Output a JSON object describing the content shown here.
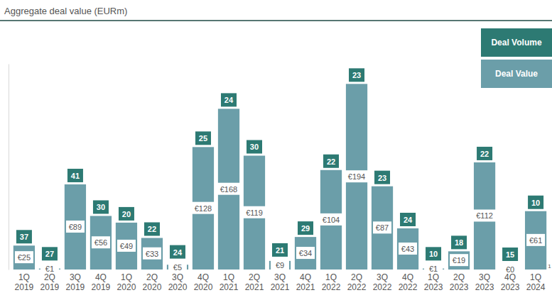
{
  "chart_data": {
    "type": "bar",
    "title": "Aggregate deal value (EURm)",
    "categories": [
      "1Q 2019",
      "2Q 2019",
      "3Q 2019",
      "4Q 2019",
      "1Q 2020",
      "2Q 2020",
      "3Q 2020",
      "4Q 2020",
      "1Q 2021",
      "2Q 2021",
      "3Q 2021",
      "4Q 2021",
      "1Q 2022",
      "2Q 2022",
      "3Q 2022",
      "4Q 2022",
      "1Q 2023",
      "2Q 2023",
      "3Q 2023",
      "4Q 2023",
      "1Q 2024"
    ],
    "series": [
      {
        "name": "Deal Volume",
        "type": "label",
        "color": "#2d7a73",
        "values": [
          37,
          27,
          41,
          30,
          20,
          22,
          24,
          25,
          24,
          30,
          21,
          29,
          22,
          23,
          23,
          24,
          10,
          18,
          22,
          15,
          10
        ]
      },
      {
        "name": "Deal Value",
        "type": "bar",
        "color": "#6b9ea9",
        "values": [
          25,
          1,
          89,
          56,
          49,
          33,
          5,
          128,
          168,
          119,
          9,
          34,
          104,
          194,
          87,
          43,
          1,
          19,
          112,
          0,
          61
        ],
        "value_labels": [
          "€25",
          "€1",
          "€89",
          "€56",
          "€49",
          "€33",
          "€5",
          "€128",
          "€168",
          "€119",
          "€9",
          "€34",
          "€104",
          "€194",
          "€87",
          "€43",
          "€1",
          "€19",
          "€112",
          "€0",
          "€61"
        ]
      }
    ],
    "ylim": [
      0,
      215
    ],
    "data_labels": true,
    "tick_labels": "x",
    "legend": "top-right",
    "annotations": [
      "1"
    ]
  }
}
